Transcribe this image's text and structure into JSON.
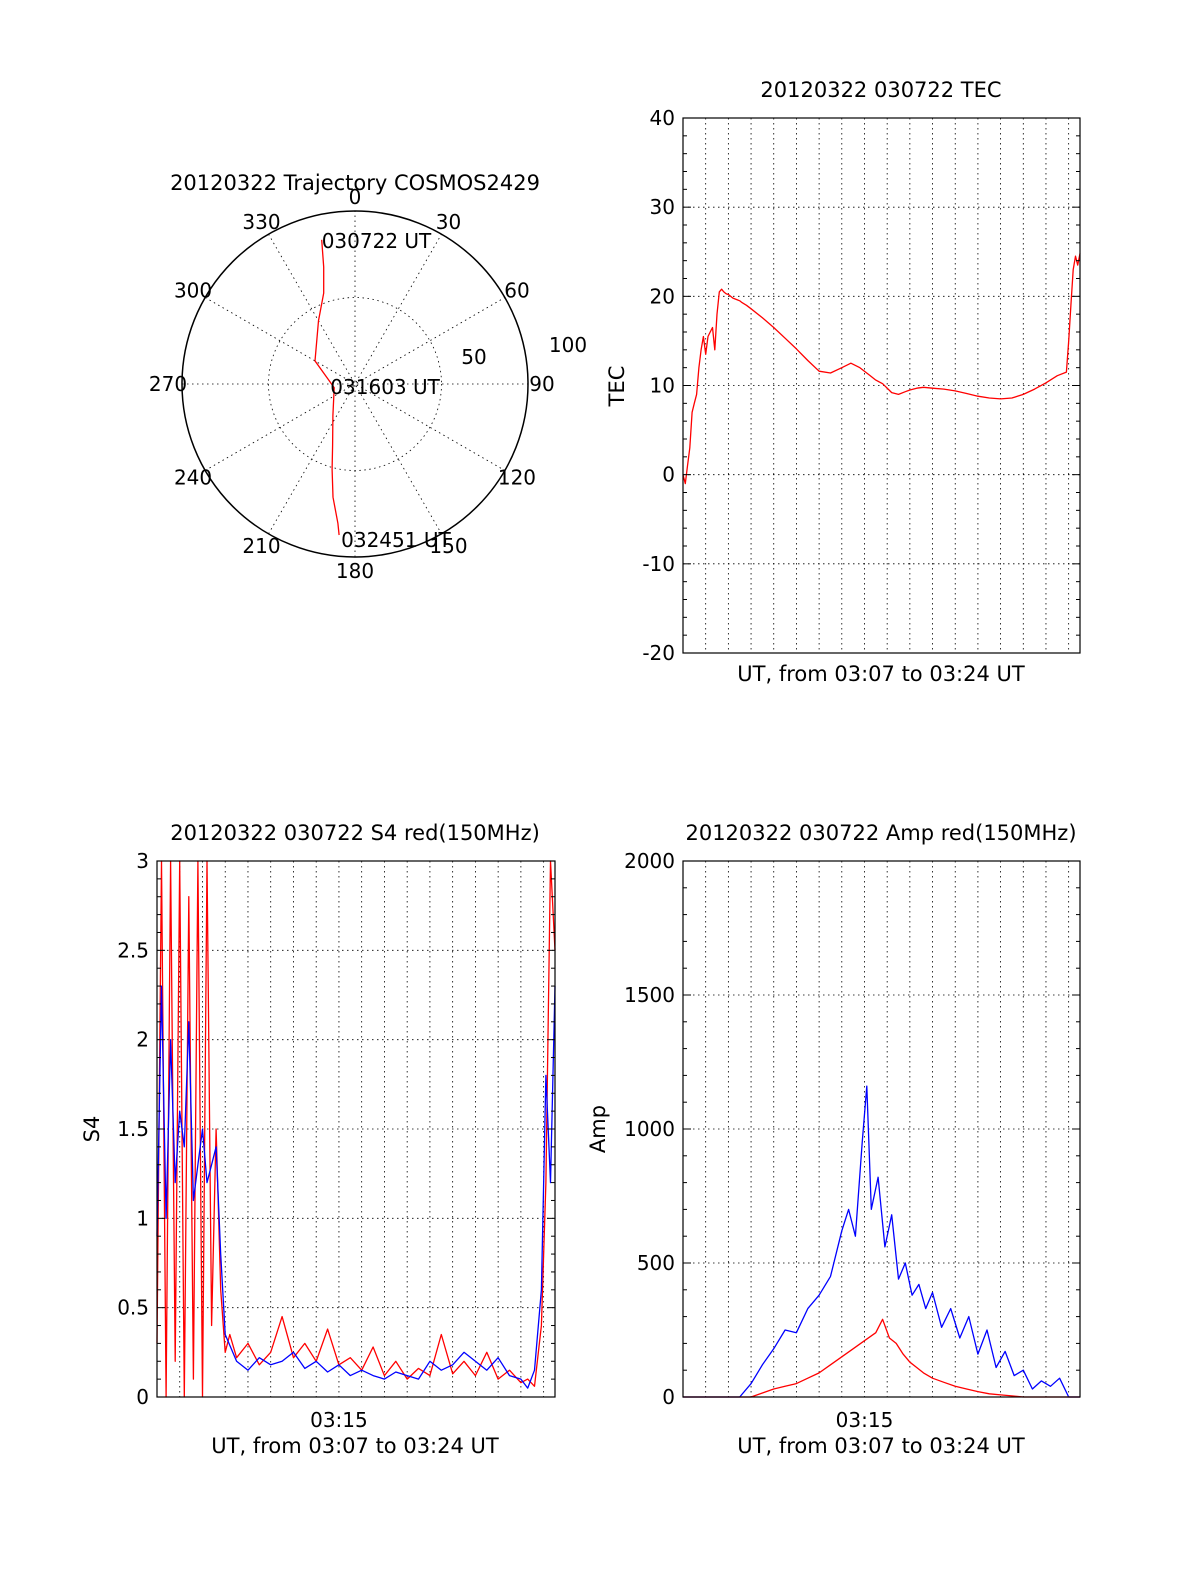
{
  "chart_data": [
    {
      "type": "polar",
      "title": "20120322 Trajectory COSMOS2429",
      "azimuth_labels": [
        "0",
        "30",
        "60",
        "90",
        "120",
        "150",
        "180",
        "210",
        "240",
        "270",
        "300",
        "330"
      ],
      "radial_labels": [
        "50",
        "100"
      ],
      "elevation_at_radius_1": 0,
      "series": [
        {
          "color": "#ff0000",
          "points": [
            {
              "az": 347,
              "el": 13
            },
            {
              "az": 345,
              "el": 27
            },
            {
              "az": 341,
              "el": 40
            },
            {
              "az": 330,
              "el": 52
            },
            {
              "az": 300,
              "el": 66
            },
            {
              "az": 260,
              "el": 79
            },
            {
              "az": 215,
              "el": 70
            },
            {
              "az": 200,
              "el": 56
            },
            {
              "az": 195,
              "el": 44
            },
            {
              "az": 191,
              "el": 30
            },
            {
              "az": 187,
              "el": 17
            },
            {
              "az": 186,
              "el": 11
            }
          ]
        }
      ],
      "annotations": [
        {
          "text": "030722 UT",
          "az": 347,
          "el": 13
        },
        {
          "text": "031603 UT",
          "az": 90,
          "el": 81
        },
        {
          "text": "032451 UT",
          "az": 186,
          "el": 11
        }
      ]
    },
    {
      "type": "line",
      "title": "20120322 030722 TEC",
      "xlabel": "UT, from 03:07 to 03:24 UT",
      "ylabel": "TEC",
      "ylim": [
        -20,
        40
      ],
      "yticks": [
        -20,
        -10,
        0,
        10,
        20,
        30,
        40
      ],
      "xlim": [
        0,
        17.5
      ],
      "grid": true,
      "series": [
        {
          "color": "#ff0000",
          "x": [
            0,
            0.1,
            0.2,
            0.3,
            0.4,
            0.5,
            0.6,
            0.7,
            0.8,
            0.9,
            1.0,
            1.1,
            1.2,
            1.3,
            1.4,
            1.5,
            1.6,
            1.7,
            1.8,
            1.9,
            2.0,
            2.1,
            2.2,
            2.3,
            2.4,
            2.5,
            2.6,
            2.8,
            3.0,
            3.5,
            4.0,
            4.5,
            5.0,
            5.5,
            6.0,
            6.5,
            7.0,
            7.4,
            7.8,
            8.2,
            8.5,
            8.8,
            9.2,
            9.5,
            9.8,
            10.0,
            10.3,
            10.6,
            11.0,
            11.5,
            12.0,
            12.5,
            13.0,
            13.5,
            14.0,
            14.5,
            15.0,
            15.5,
            16.0,
            16.5,
            16.9,
            17.0,
            17.1,
            17.2,
            17.3,
            17.4,
            17.5
          ],
          "y": [
            0,
            -1,
            1,
            3,
            7,
            8,
            9,
            12,
            14,
            15.5,
            13.5,
            15.5,
            16,
            16.5,
            14,
            18,
            20.5,
            20.8,
            20.5,
            20.3,
            20.2,
            20,
            19.8,
            19.7,
            19.6,
            19.5,
            19.3,
            19.0,
            18.6,
            17.6,
            16.5,
            15.3,
            14.1,
            12.8,
            11.6,
            11.4,
            12.0,
            12.5,
            12.0,
            11.2,
            10.6,
            10.2,
            9.2,
            9.0,
            9.3,
            9.5,
            9.7,
            9.8,
            9.7,
            9.6,
            9.4,
            9.1,
            8.8,
            8.6,
            8.5,
            8.6,
            9.0,
            9.6,
            10.3,
            11.1,
            11.5,
            15,
            19,
            23,
            24.5,
            23.5,
            24.8
          ]
        }
      ]
    },
    {
      "type": "line",
      "title": "20120322 030722 S4 red(150MHz)",
      "xlabel": "UT, from 03:07 to 03:24 UT",
      "ylabel": "S4",
      "ylim": [
        0,
        3
      ],
      "yticks": [
        0,
        0.5,
        1,
        1.5,
        2,
        2.5,
        3
      ],
      "xlim": [
        0,
        17.5
      ],
      "xticks": [
        {
          "value": 8,
          "label": "03:15"
        }
      ],
      "grid": true,
      "series": [
        {
          "color": "#ff0000",
          "x": [
            0,
            0.2,
            0.4,
            0.6,
            0.8,
            1.0,
            1.2,
            1.4,
            1.6,
            1.8,
            2.0,
            2.2,
            2.4,
            2.6,
            2.8,
            3.0,
            3.2,
            3.5,
            4.0,
            4.5,
            5.0,
            5.5,
            6.0,
            6.5,
            7.0,
            7.5,
            8.0,
            8.5,
            9.0,
            9.5,
            10.0,
            10.5,
            11.0,
            11.5,
            12.0,
            12.5,
            13.0,
            13.5,
            14.0,
            14.5,
            15.0,
            15.5,
            16.0,
            16.3,
            16.6,
            16.9,
            17.1,
            17.3,
            17.5
          ],
          "y": [
            0.3,
            3.0,
            0.0,
            3.0,
            0.2,
            3.0,
            0.0,
            2.8,
            0.1,
            3.0,
            0.0,
            3.0,
            0.4,
            1.5,
            0.6,
            0.25,
            0.35,
            0.22,
            0.3,
            0.18,
            0.25,
            0.45,
            0.22,
            0.3,
            0.2,
            0.38,
            0.18,
            0.22,
            0.15,
            0.28,
            0.12,
            0.2,
            0.1,
            0.16,
            0.12,
            0.35,
            0.13,
            0.2,
            0.12,
            0.25,
            0.1,
            0.15,
            0.08,
            0.1,
            0.06,
            0.4,
            1.2,
            3.0,
            2.5
          ]
        },
        {
          "color": "#0000ff",
          "x": [
            0,
            0.2,
            0.4,
            0.6,
            0.8,
            1.0,
            1.2,
            1.4,
            1.6,
            1.8,
            2.0,
            2.2,
            2.4,
            2.6,
            2.8,
            3.0,
            3.5,
            4.0,
            4.5,
            5.0,
            5.5,
            6.0,
            6.5,
            7.0,
            7.5,
            8.0,
            8.5,
            9.0,
            9.5,
            10.0,
            10.5,
            11.0,
            11.5,
            12.0,
            12.5,
            13.0,
            13.5,
            14.0,
            14.5,
            15.0,
            15.5,
            16.0,
            16.3,
            16.6,
            16.9,
            17.1,
            17.3,
            17.5
          ],
          "y": [
            0.9,
            2.3,
            1.0,
            2.0,
            1.2,
            1.6,
            1.4,
            2.1,
            1.1,
            1.3,
            1.5,
            1.2,
            1.3,
            1.4,
            0.8,
            0.35,
            0.2,
            0.15,
            0.22,
            0.18,
            0.2,
            0.25,
            0.16,
            0.2,
            0.14,
            0.18,
            0.12,
            0.15,
            0.12,
            0.1,
            0.14,
            0.12,
            0.1,
            0.2,
            0.15,
            0.18,
            0.25,
            0.2,
            0.15,
            0.22,
            0.12,
            0.1,
            0.05,
            0.15,
            0.6,
            1.8,
            1.2,
            2.3
          ]
        }
      ]
    },
    {
      "type": "line",
      "title": "20120322 030722 Amp red(150MHz)",
      "xlabel": "UT, from 03:07 to 03:24 UT",
      "ylabel": "Amp",
      "ylim": [
        0,
        2000
      ],
      "yticks": [
        0,
        500,
        1000,
        1500,
        2000
      ],
      "xlim": [
        0,
        17.5
      ],
      "xticks": [
        {
          "value": 8,
          "label": "03:15"
        }
      ],
      "grid": true,
      "series": [
        {
          "color": "#0000ff",
          "x": [
            0,
            2.5,
            3.0,
            3.5,
            4.0,
            4.5,
            5.0,
            5.5,
            6.0,
            6.5,
            7.0,
            7.3,
            7.6,
            7.9,
            8.1,
            8.3,
            8.6,
            8.9,
            9.2,
            9.5,
            9.8,
            10.1,
            10.4,
            10.7,
            11.0,
            11.4,
            11.8,
            12.2,
            12.6,
            13.0,
            13.4,
            13.8,
            14.2,
            14.6,
            15.0,
            15.4,
            15.8,
            16.2,
            16.6,
            17.0,
            17.5
          ],
          "y": [
            0,
            0,
            50,
            120,
            180,
            250,
            240,
            330,
            380,
            450,
            620,
            700,
            600,
            950,
            1160,
            700,
            820,
            560,
            680,
            440,
            500,
            380,
            420,
            330,
            390,
            260,
            330,
            220,
            300,
            160,
            250,
            110,
            170,
            80,
            100,
            30,
            60,
            40,
            70,
            0,
            0
          ]
        },
        {
          "color": "#ff0000",
          "x": [
            0,
            3.0,
            3.5,
            4.0,
            4.5,
            5.0,
            5.5,
            6.0,
            6.5,
            7.0,
            7.5,
            8.0,
            8.5,
            8.8,
            9.1,
            9.4,
            9.7,
            10.0,
            10.3,
            10.6,
            11.0,
            11.5,
            12.0,
            12.5,
            13.0,
            13.5,
            14.0,
            14.5,
            15.0,
            17.5
          ],
          "y": [
            0,
            0,
            15,
            30,
            40,
            50,
            70,
            90,
            120,
            150,
            180,
            210,
            240,
            290,
            220,
            200,
            160,
            130,
            110,
            90,
            70,
            55,
            40,
            30,
            20,
            12,
            8,
            4,
            0,
            0
          ]
        }
      ]
    }
  ]
}
